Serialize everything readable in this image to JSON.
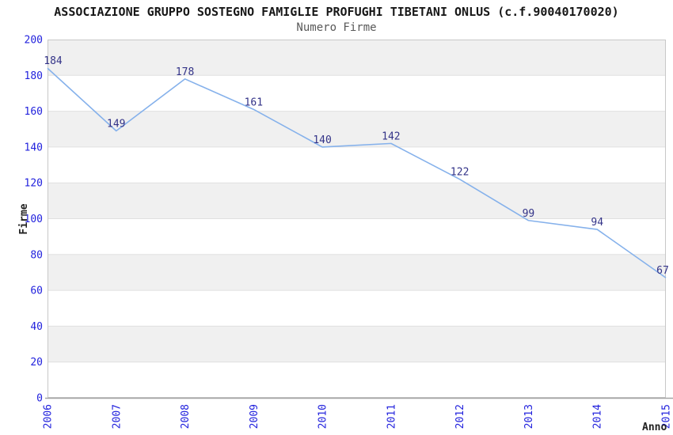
{
  "chart_data": {
    "type": "line",
    "title": "ASSOCIAZIONE GRUPPO SOSTEGNO FAMIGLIE PROFUGHI TIBETANI ONLUS (c.f.90040170020)",
    "subtitle": "Numero Firme",
    "xlabel": "Anno",
    "ylabel": "Firme",
    "categories": [
      "2006",
      "2007",
      "2008",
      "2009",
      "2010",
      "2011",
      "2012",
      "2013",
      "2014",
      "2015"
    ],
    "values": [
      184,
      149,
      178,
      161,
      140,
      142,
      122,
      99,
      94,
      67
    ],
    "ylim": [
      0,
      200
    ],
    "ytick_step": 20,
    "yticks": [
      0,
      20,
      40,
      60,
      80,
      100,
      120,
      140,
      160,
      180,
      200
    ],
    "grid": "horizontal-alternating-bands",
    "legend_position": "none",
    "point_labels_visible": true,
    "colors": {
      "line": "#85b1eb",
      "tick_label": "#2222dd",
      "data_label": "#333388",
      "band_gray": "#f0f0f0",
      "band_white": "#ffffff",
      "grid_line": "#e0e0e0",
      "plot_border": "#c8c8c8",
      "axis_line": "#a5a5a5",
      "title": "#171717",
      "subtitle": "#595959",
      "axis_title": "#222222"
    }
  }
}
